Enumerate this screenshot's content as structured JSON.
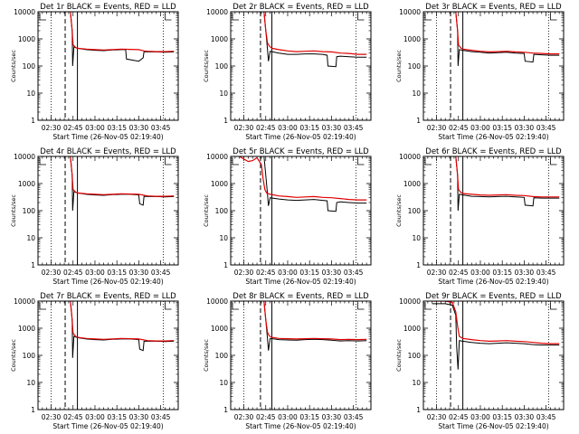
{
  "page": {
    "background": "#ffffff"
  },
  "colors": {
    "events": "#000000",
    "lld": "#e00000",
    "frame": "#000000"
  },
  "common": {
    "xlabel": "Start Time (26-Nov-05 02:19:40)",
    "ylabel": "Counts/sec",
    "x_ticks": [
      "02:30",
      "02:45",
      "03:00",
      "03:15",
      "03:30",
      "03:45"
    ],
    "y_ticks": [
      "1",
      "10",
      "100",
      "1000",
      "10000"
    ]
  },
  "chart_data": [
    {
      "type": "line",
      "title": "Det 1r BLACK = Events, RED = LLD",
      "xlabel": "Start Time (26-Nov-05 02:19:40)",
      "ylabel": "Counts/sec",
      "xlim": [
        2.35,
        3.95
      ],
      "ylim": [
        1,
        10000
      ],
      "yscale": "log",
      "vlines": {
        "dotted": [
          2.5,
          3.78
        ],
        "dashed": 2.66,
        "solid": 2.8
      },
      "series": [
        {
          "name": "Events",
          "color": "#000000",
          "x": [
            2.72,
            2.74,
            2.745,
            2.76,
            2.8,
            2.9,
            3.0,
            3.1,
            3.2,
            3.3,
            3.35,
            3.36,
            3.45,
            3.5,
            3.55,
            3.56,
            3.6,
            3.7,
            3.8,
            3.9
          ],
          "y": [
            10000,
            2000,
            100,
            500,
            450,
            400,
            380,
            370,
            390,
            400,
            400,
            180,
            160,
            150,
            200,
            340,
            330,
            330,
            320,
            330
          ]
        },
        {
          "name": "LLD",
          "color": "#e00000",
          "x": [
            2.72,
            2.74,
            2.75,
            2.78,
            2.8,
            2.9,
            3.0,
            3.1,
            3.2,
            3.3,
            3.4,
            3.5,
            3.56,
            3.6,
            3.7,
            3.8,
            3.9
          ],
          "y": [
            10000,
            2000,
            600,
            480,
            450,
            420,
            400,
            390,
            400,
            420,
            410,
            400,
            360,
            350,
            340,
            340,
            350
          ]
        }
      ]
    },
    {
      "type": "line",
      "title": "Det 2r BLACK = Events, RED = LLD",
      "xlabel": "Start Time (26-Nov-05 02:19:40)",
      "ylabel": "Counts/sec",
      "xlim": [
        2.35,
        3.95
      ],
      "ylim": [
        1,
        10000
      ],
      "yscale": "log",
      "vlines": {
        "dotted": [
          2.5,
          3.78
        ],
        "dashed": 2.69,
        "solid": 2.82
      },
      "series": [
        {
          "name": "Events",
          "color": "#000000",
          "x": [
            2.73,
            2.75,
            2.77,
            2.78,
            2.8,
            2.9,
            3.0,
            3.1,
            3.2,
            3.3,
            3.4,
            3.45,
            3.46,
            3.55,
            3.56,
            3.6,
            3.7,
            3.8,
            3.9
          ],
          "y": [
            10000,
            2000,
            400,
            150,
            350,
            300,
            270,
            270,
            280,
            280,
            270,
            250,
            100,
            95,
            220,
            230,
            220,
            210,
            210
          ]
        },
        {
          "name": "LLD",
          "color": "#e00000",
          "x": [
            2.73,
            2.75,
            2.77,
            2.79,
            2.82,
            2.9,
            3.0,
            3.1,
            3.2,
            3.3,
            3.4,
            3.5,
            3.6,
            3.7,
            3.8,
            3.9
          ],
          "y": [
            10000,
            2000,
            700,
            550,
            450,
            400,
            360,
            340,
            350,
            360,
            340,
            330,
            300,
            290,
            270,
            270
          ]
        }
      ]
    },
    {
      "type": "line",
      "title": "Det 3r BLACK = Events, RED = LLD",
      "xlabel": "Start Time (26-Nov-05 02:19:40)",
      "ylabel": "Counts/sec",
      "xlim": [
        2.35,
        3.95
      ],
      "ylim": [
        1,
        10000
      ],
      "yscale": "log",
      "vlines": {
        "dotted": [
          2.5,
          3.78
        ],
        "dashed": 2.66,
        "solid": 2.8
      },
      "series": [
        {
          "name": "Events",
          "color": "#000000",
          "x": [
            2.72,
            2.74,
            2.745,
            2.76,
            2.8,
            2.9,
            3.0,
            3.1,
            3.2,
            3.3,
            3.4,
            3.5,
            3.51,
            3.6,
            3.61,
            3.7,
            3.8,
            3.9
          ],
          "y": [
            10000,
            2000,
            100,
            400,
            380,
            340,
            320,
            300,
            310,
            320,
            300,
            290,
            150,
            140,
            270,
            260,
            250,
            250
          ]
        },
        {
          "name": "LLD",
          "color": "#e00000",
          "x": [
            2.72,
            2.74,
            2.75,
            2.78,
            2.8,
            2.9,
            3.0,
            3.1,
            3.2,
            3.3,
            3.4,
            3.5,
            3.6,
            3.7,
            3.8,
            3.9
          ],
          "y": [
            10000,
            2000,
            600,
            450,
            420,
            380,
            350,
            330,
            340,
            350,
            330,
            320,
            300,
            290,
            280,
            280
          ]
        }
      ]
    },
    {
      "type": "line",
      "title": "Det 4r BLACK = Events, RED = LLD",
      "xlabel": "Start Time (26-Nov-05 02:19:40)",
      "ylabel": "Counts/sec",
      "xlim": [
        2.35,
        3.95
      ],
      "ylim": [
        1,
        10000
      ],
      "yscale": "log",
      "vlines": {
        "dotted": [
          2.5,
          3.78
        ],
        "dashed": 2.66,
        "solid": 2.8
      },
      "series": [
        {
          "name": "Events",
          "color": "#000000",
          "x": [
            2.72,
            2.74,
            2.745,
            2.76,
            2.8,
            2.9,
            3.0,
            3.1,
            3.2,
            3.3,
            3.4,
            3.5,
            3.51,
            3.55,
            3.56,
            3.6,
            3.7,
            3.8,
            3.9
          ],
          "y": [
            10000,
            2000,
            100,
            500,
            450,
            400,
            380,
            370,
            390,
            400,
            400,
            380,
            180,
            160,
            340,
            330,
            330,
            320,
            330
          ]
        },
        {
          "name": "LLD",
          "color": "#e00000",
          "x": [
            2.72,
            2.74,
            2.75,
            2.78,
            2.8,
            2.9,
            3.0,
            3.1,
            3.2,
            3.3,
            3.4,
            3.5,
            3.6,
            3.7,
            3.8,
            3.9
          ],
          "y": [
            10000,
            2000,
            600,
            480,
            450,
            420,
            400,
            390,
            400,
            420,
            410,
            400,
            350,
            340,
            340,
            350
          ]
        }
      ]
    },
    {
      "type": "line",
      "title": "Det 5r BLACK = Events, RED = LLD",
      "xlabel": "Start Time (26-Nov-05 02:19:40)",
      "ylabel": "Counts/sec",
      "xlim": [
        2.35,
        3.95
      ],
      "ylim": [
        1,
        10000
      ],
      "yscale": "log",
      "vlines": {
        "dotted": [
          2.5,
          3.78
        ],
        "dashed": 2.69,
        "solid": 2.82
      },
      "series": [
        {
          "name": "Events",
          "color": "#000000",
          "x": [
            2.73,
            2.75,
            2.77,
            2.78,
            2.8,
            2.9,
            3.0,
            3.1,
            3.2,
            3.3,
            3.4,
            3.45,
            3.46,
            3.55,
            3.56,
            3.6,
            3.7,
            3.8,
            3.9
          ],
          "y": [
            10000,
            2000,
            400,
            150,
            300,
            270,
            250,
            240,
            250,
            260,
            240,
            230,
            100,
            95,
            200,
            210,
            200,
            190,
            190
          ]
        },
        {
          "name": "LLD",
          "color": "#e00000",
          "x": [
            2.45,
            2.5,
            2.55,
            2.6,
            2.65,
            2.7,
            2.72,
            2.74,
            2.76,
            2.8,
            2.9,
            3.0,
            3.1,
            3.2,
            3.3,
            3.4,
            3.5,
            3.6,
            3.7,
            3.8,
            3.9
          ],
          "y": [
            10000,
            8000,
            6500,
            7000,
            9000,
            5000,
            1500,
            600,
            450,
            400,
            350,
            330,
            310,
            320,
            330,
            310,
            300,
            280,
            260,
            250,
            250
          ]
        }
      ]
    },
    {
      "type": "line",
      "title": "Det 6r BLACK = Events, RED = LLD",
      "xlabel": "Start Time (26-Nov-05 02:19:40)",
      "ylabel": "Counts/sec",
      "xlim": [
        2.35,
        3.95
      ],
      "ylim": [
        1,
        10000
      ],
      "yscale": "log",
      "vlines": {
        "dotted": [
          2.5,
          3.78
        ],
        "dashed": 2.66,
        "solid": 2.8
      },
      "series": [
        {
          "name": "Events",
          "color": "#000000",
          "x": [
            2.72,
            2.74,
            2.745,
            2.76,
            2.8,
            2.9,
            3.0,
            3.1,
            3.2,
            3.3,
            3.4,
            3.5,
            3.51,
            3.6,
            3.61,
            3.7,
            3.8,
            3.9
          ],
          "y": [
            10000,
            2000,
            100,
            400,
            380,
            340,
            330,
            320,
            330,
            340,
            320,
            310,
            160,
            150,
            300,
            290,
            290,
            290
          ]
        },
        {
          "name": "LLD",
          "color": "#e00000",
          "x": [
            2.72,
            2.74,
            2.75,
            2.78,
            2.8,
            2.9,
            3.0,
            3.1,
            3.2,
            3.3,
            3.4,
            3.5,
            3.6,
            3.7,
            3.8,
            3.9
          ],
          "y": [
            10000,
            2000,
            600,
            460,
            430,
            400,
            380,
            370,
            380,
            390,
            370,
            360,
            330,
            320,
            320,
            320
          ]
        }
      ]
    },
    {
      "type": "line",
      "title": "Det 7r BLACK = Events, RED = LLD",
      "xlabel": "Start Time (26-Nov-05 02:19:40)",
      "ylabel": "Counts/sec",
      "xlim": [
        2.35,
        3.95
      ],
      "ylim": [
        1,
        10000
      ],
      "yscale": "log",
      "vlines": {
        "dotted": [
          2.5,
          3.78
        ],
        "dashed": 2.66,
        "solid": 2.8
      },
      "series": [
        {
          "name": "Events",
          "color": "#000000",
          "x": [
            2.72,
            2.74,
            2.745,
            2.76,
            2.8,
            2.9,
            3.0,
            3.1,
            3.2,
            3.3,
            3.4,
            3.5,
            3.51,
            3.55,
            3.56,
            3.6,
            3.7,
            3.8,
            3.9
          ],
          "y": [
            10000,
            2000,
            80,
            500,
            450,
            400,
            380,
            370,
            390,
            400,
            400,
            380,
            170,
            150,
            330,
            330,
            330,
            320,
            330
          ]
        },
        {
          "name": "LLD",
          "color": "#e00000",
          "x": [
            2.72,
            2.74,
            2.75,
            2.78,
            2.8,
            2.9,
            3.0,
            3.1,
            3.2,
            3.3,
            3.4,
            3.5,
            3.6,
            3.7,
            3.8,
            3.9
          ],
          "y": [
            10000,
            2000,
            650,
            500,
            460,
            420,
            400,
            390,
            400,
            420,
            410,
            400,
            350,
            340,
            340,
            350
          ]
        }
      ]
    },
    {
      "type": "line",
      "title": "Det 8r BLACK = Events, RED = LLD",
      "xlabel": "Start Time (26-Nov-05 02:19:40)",
      "ylabel": "Counts/sec",
      "xlim": [
        2.35,
        3.95
      ],
      "ylim": [
        1,
        10000
      ],
      "yscale": "log",
      "vlines": {
        "dotted": [
          2.5,
          3.78
        ],
        "dashed": 2.69,
        "solid": 2.82
      },
      "series": [
        {
          "name": "Events",
          "color": "#000000",
          "x": [
            2.73,
            2.75,
            2.77,
            2.78,
            2.8,
            2.9,
            3.0,
            3.1,
            3.2,
            3.3,
            3.4,
            3.5,
            3.6,
            3.7,
            3.8,
            3.9
          ],
          "y": [
            10000,
            2000,
            400,
            150,
            420,
            380,
            370,
            360,
            380,
            390,
            380,
            360,
            340,
            350,
            340,
            350
          ]
        },
        {
          "name": "LLD",
          "color": "#e00000",
          "x": [
            2.73,
            2.75,
            2.77,
            2.79,
            2.82,
            2.9,
            3.0,
            3.1,
            3.2,
            3.3,
            3.4,
            3.5,
            3.6,
            3.7,
            3.8,
            3.9
          ],
          "y": [
            10000,
            2000,
            700,
            520,
            460,
            420,
            410,
            400,
            410,
            420,
            410,
            400,
            380,
            390,
            380,
            390
          ]
        }
      ]
    },
    {
      "type": "line",
      "title": "Det 9r BLACK = Events, RED = LLD",
      "xlabel": "Start Time (26-Nov-05 02:19:40)",
      "ylabel": "Counts/sec",
      "xlim": [
        2.35,
        3.95
      ],
      "ylim": [
        1,
        10000
      ],
      "yscale": "log",
      "vlines": {
        "dotted": [
          2.5,
          3.78
        ],
        "dashed": 2.66,
        "solid": 2.8
      },
      "series": [
        {
          "name": "Events",
          "color": "#000000",
          "x": [
            2.45,
            2.6,
            2.68,
            2.72,
            2.73,
            2.745,
            2.76,
            2.8,
            2.9,
            3.0,
            3.1,
            3.2,
            3.3,
            3.4,
            3.5,
            3.6,
            3.7,
            3.8,
            3.9
          ],
          "y": [
            8000,
            8000,
            7000,
            3000,
            200,
            30,
            350,
            330,
            300,
            280,
            270,
            280,
            290,
            280,
            270,
            250,
            240,
            240,
            240
          ]
        },
        {
          "name": "LLD",
          "color": "#e00000",
          "x": [
            2.45,
            2.6,
            2.68,
            2.72,
            2.74,
            2.76,
            2.8,
            2.9,
            3.0,
            3.1,
            3.2,
            3.3,
            3.4,
            3.5,
            3.6,
            3.7,
            3.8,
            3.9
          ],
          "y": [
            10000,
            10000,
            9000,
            4000,
            1200,
            500,
            420,
            380,
            350,
            330,
            340,
            350,
            330,
            320,
            300,
            280,
            270,
            270
          ]
        }
      ]
    }
  ]
}
